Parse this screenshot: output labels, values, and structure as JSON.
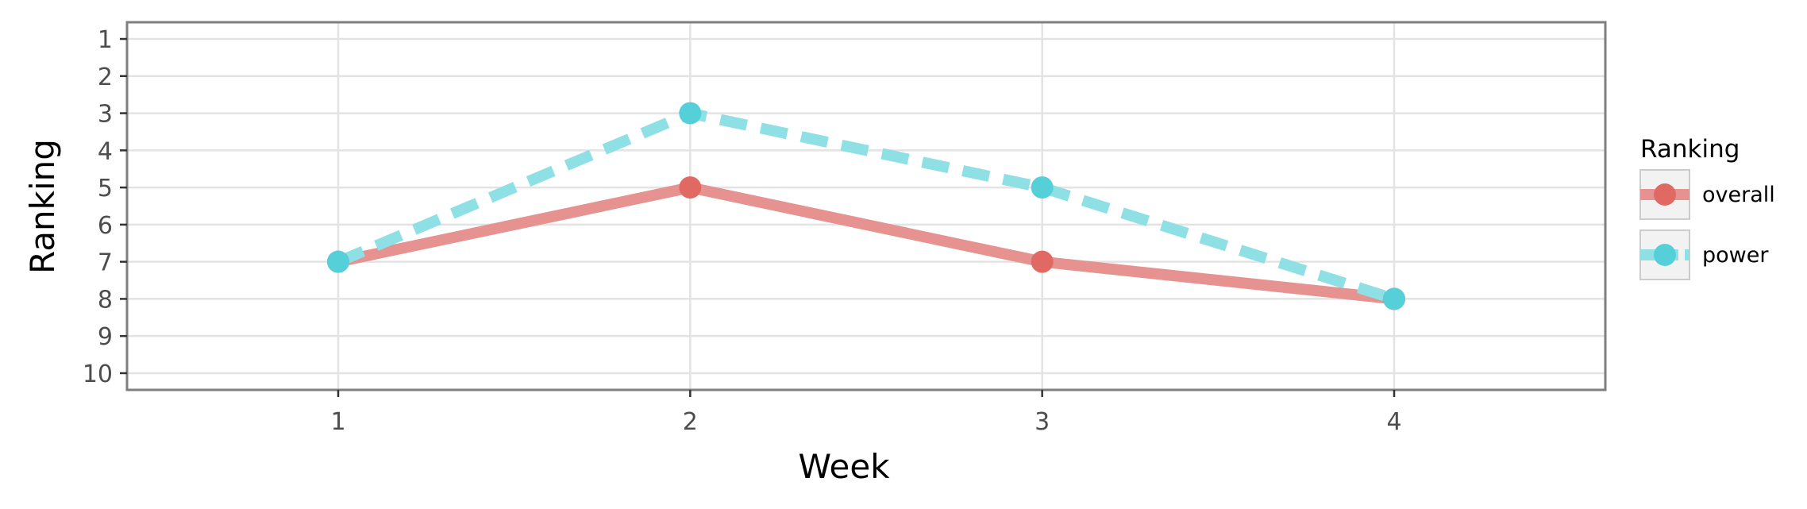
{
  "chart_data": {
    "type": "line",
    "xlabel": "Week",
    "ylabel": "Ranking",
    "x": [
      1,
      2,
      3,
      4
    ],
    "xlim": [
      0.4,
      4.6
    ],
    "ylim": [
      10.45,
      0.55
    ],
    "y_reversed": true,
    "yticks": [
      1,
      2,
      3,
      4,
      5,
      6,
      7,
      8,
      9,
      10
    ],
    "grid": true,
    "legend": {
      "title": "Ranking",
      "position": "right"
    },
    "series": [
      {
        "name": "overall",
        "values": [
          7,
          5,
          7,
          8
        ],
        "color": "#e06a63",
        "line_color": "#e59290",
        "linestyle": "solid"
      },
      {
        "name": "power",
        "values": [
          7,
          3,
          5,
          8
        ],
        "color": "#55d0d8",
        "line_color": "#8ee0e4",
        "linestyle": "dashed"
      }
    ]
  }
}
